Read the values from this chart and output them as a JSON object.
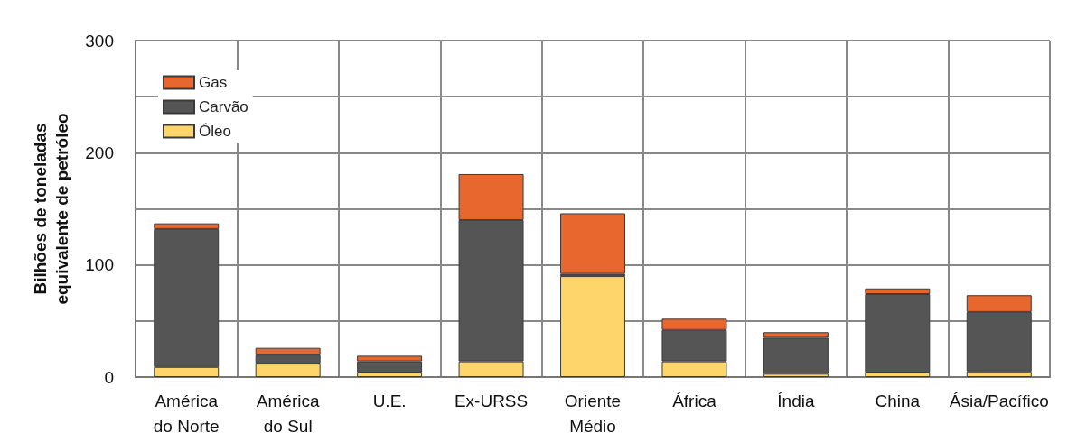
{
  "chart_data": {
    "type": "bar",
    "stacked": true,
    "ylabel": "Bilhões de toneladas\nequivalente de petróleo",
    "categories": [
      "América\ndo Norte",
      "América\ndo Sul",
      "U.E.",
      "Ex-URSS",
      "Oriente\nMédio",
      "África",
      "Índia",
      "China",
      "Ásia/Pacífico"
    ],
    "series": [
      {
        "name": "Óleo",
        "color": "#fdd56a",
        "values": [
          9,
          12,
          4,
          14,
          90,
          14,
          3,
          4,
          5
        ]
      },
      {
        "name": "Carvão",
        "color": "#555555",
        "values": [
          123,
          8,
          10,
          126,
          2,
          28,
          32,
          70,
          53
        ]
      },
      {
        "name": "Gas",
        "color": "#e8672e",
        "values": [
          5,
          6,
          5,
          41,
          54,
          10,
          5,
          5,
          15
        ]
      }
    ],
    "ylim": [
      0,
      300
    ],
    "yticks": [
      0,
      {
        "value": 50,
        "label": null
      },
      100,
      {
        "value": 150,
        "label": null
      },
      200,
      {
        "value": 250,
        "label": null
      },
      300
    ],
    "grid": true,
    "legend": "top left"
  }
}
